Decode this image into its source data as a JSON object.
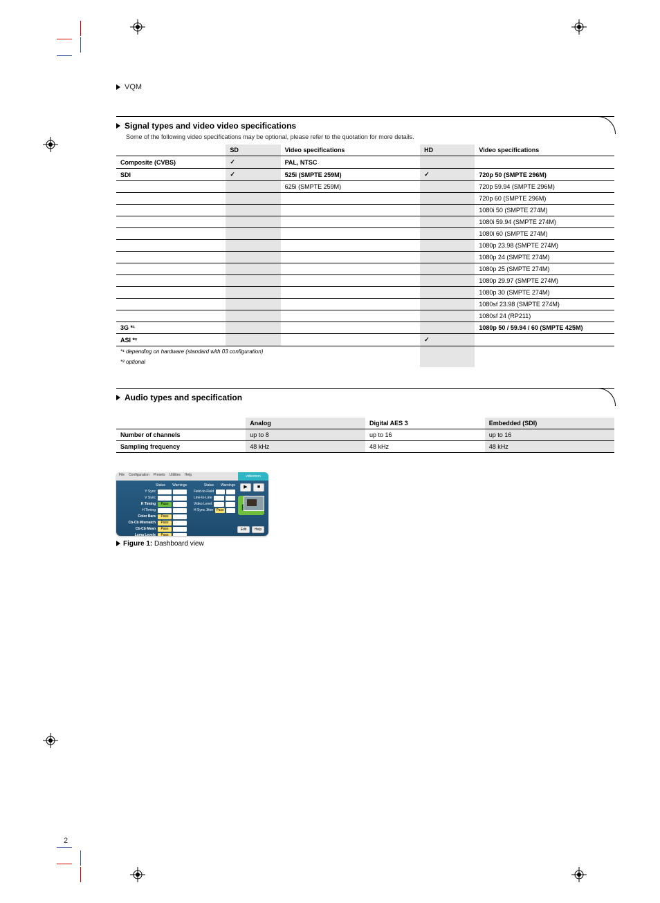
{
  "top_label": "VQM",
  "sections": {
    "a": {
      "title": "Signal types and video video specifications",
      "sub": "Some of the following video specifications may be optional, please refer to the quotation for more details.",
      "table": {
        "headers": [
          "",
          "SD",
          "Video specifications",
          "HD",
          "Video specifications"
        ],
        "groups": [
          {
            "main": [
              "Composite (CVBS)",
              "✓",
              "PAL, NTSC",
              "",
              ""
            ],
            "subs": []
          },
          {
            "main": [
              "SDI",
              "✓",
              "525i (SMPTE 259M)",
              "✓",
              "720p 50 (SMPTE 296M)"
            ],
            "subs": [
              [
                "",
                "",
                "625i (SMPTE 259M)",
                "",
                "720p 59.94 (SMPTE 296M)"
              ],
              [
                "",
                "",
                "",
                "",
                "720p 60 (SMPTE 296M)"
              ],
              [
                "",
                "",
                "",
                "",
                "1080i 50 (SMPTE 274M)"
              ],
              [
                "",
                "",
                "",
                "",
                "1080i 59.94 (SMPTE 274M)"
              ],
              [
                "",
                "",
                "",
                "",
                "1080i 60 (SMPTE 274M)"
              ],
              [
                "",
                "",
                "",
                "",
                "1080p 23.98 (SMPTE 274M)"
              ],
              [
                "",
                "",
                "",
                "",
                "1080p 24 (SMPTE 274M)"
              ],
              [
                "",
                "",
                "",
                "",
                "1080p 25 (SMPTE 274M)"
              ],
              [
                "",
                "",
                "",
                "",
                "1080p 29.97 (SMPTE 274M)"
              ],
              [
                "",
                "",
                "",
                "",
                "1080p 30 (SMPTE 274M)"
              ],
              [
                "",
                "",
                "",
                "",
                "1080sf 23.98 (SMPTE 274M)"
              ],
              [
                "",
                "",
                "",
                "",
                "1080sf 24 (RP211)"
              ]
            ]
          },
          {
            "main": [
              "3G *¹",
              "",
              "",
              "",
              "1080p 50 / 59.94 / 60 (SMPTE 425M)"
            ],
            "subs": []
          },
          {
            "main": [
              "ASI *²",
              "",
              "",
              "✓",
              ""
            ],
            "subs": []
          }
        ],
        "footnotes": [
          "*¹ depending on hardware (standard with 03 configuration)",
          "*² optional"
        ]
      }
    },
    "b": {
      "title": "Audio types and specification",
      "table": {
        "headers": [
          "",
          "Analog",
          "Digital AES 3",
          "Embedded (SDI)"
        ],
        "rows": [
          [
            "Number of channels",
            "up to 8",
            "up to 16",
            "up to 16"
          ],
          [
            "Sampling frequency",
            "48 kHz",
            "48 kHz",
            "48 kHz"
          ]
        ]
      }
    }
  },
  "vqm": {
    "menus": [
      "File",
      "Configuration",
      "Presets",
      "Utilities",
      "Help"
    ],
    "brand": "videomon",
    "headers": [
      "Status",
      "Warnings"
    ],
    "left_rows": [
      {
        "label": "Y Sync",
        "bold": false,
        "status": "",
        "status_bg": "#ffffff"
      },
      {
        "label": "V Sync",
        "bold": false,
        "status": "",
        "status_bg": "#ffffff"
      },
      {
        "label": "H Timing",
        "bold": true,
        "status": "Pass",
        "status_bg": "#6fbf3f"
      },
      {
        "label": "H Timing",
        "bold": false,
        "status": "",
        "status_bg": "#ffffff"
      },
      {
        "label": "Color Bars",
        "bold": true,
        "status": "Pass",
        "status_bg": "#ffe36e"
      },
      {
        "label": "Cb-Cb Mismatch",
        "bold": true,
        "status": "Pass",
        "status_bg": "#ffe36e"
      },
      {
        "label": "Cb-Cb Mean",
        "bold": true,
        "status": "Pass",
        "status_bg": "#ffe36e"
      },
      {
        "label": "Luma Levels",
        "bold": true,
        "status": "Pass",
        "status_bg": "#ffe36e"
      }
    ],
    "right_rows": [
      {
        "label": "Field-to-Field",
        "status": "",
        "status_bg": "#ffffff"
      },
      {
        "label": "Line-to-Line",
        "status": "",
        "status_bg": "#ffffff"
      },
      {
        "label": "Video Level",
        "status": "",
        "status_bg": "#ffffff"
      },
      {
        "label": "H Sync Jitter",
        "status": "Pass",
        "status_bg": "#ffe36e"
      }
    ],
    "pass_tile": {
      "mini": "✓ Pass",
      "big": "Pass",
      "bg": "#6fbf3f",
      "color": "#0b4a0b"
    },
    "top_buttons": [
      "▶",
      "■"
    ],
    "bottom_buttons": [
      "Edit",
      "Help"
    ]
  },
  "figure": {
    "num": "Figure 1:",
    "text": "Dashboard view"
  },
  "page_number": "2",
  "colors": {
    "shade": "#e5e5e5",
    "rule": "#000000",
    "red": "#d00000",
    "blue": "#3b5ba5",
    "panel_bg_top": "#2a5f86",
    "panel_bg_bot": "#1d4b6e",
    "brand": "#2fb6c5"
  }
}
